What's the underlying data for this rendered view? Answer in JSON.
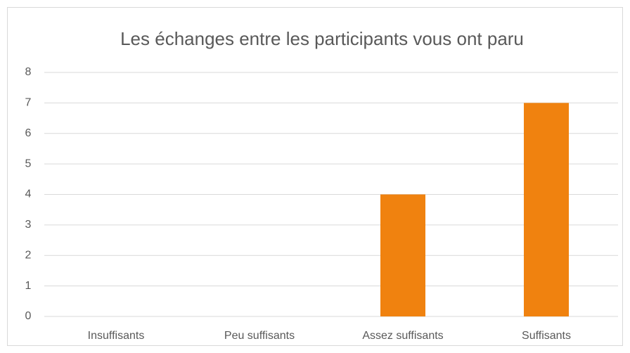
{
  "chart_data": {
    "type": "bar",
    "title": "Les échanges entre les participants vous ont paru",
    "categories": [
      "Insuffisants",
      "Peu suffisants",
      "Assez suffisants",
      "Suffisants"
    ],
    "values": [
      0,
      0,
      4,
      7
    ],
    "color": "#f0820f",
    "ylim": [
      0,
      8
    ],
    "yticks": [
      0,
      1,
      2,
      3,
      4,
      5,
      6,
      7,
      8
    ],
    "grid": true
  }
}
